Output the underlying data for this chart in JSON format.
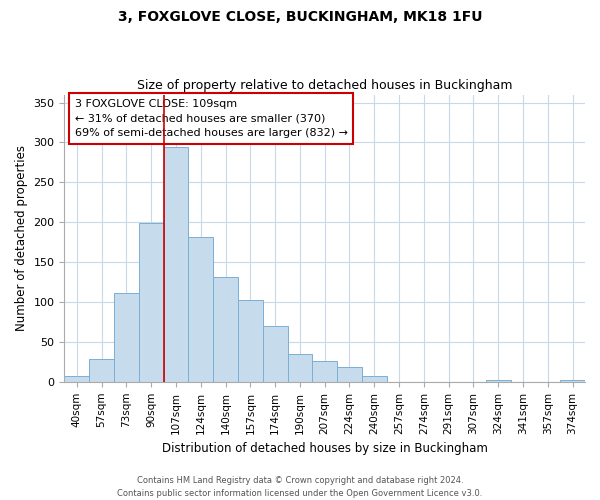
{
  "title": "3, FOXGLOVE CLOSE, BUCKINGHAM, MK18 1FU",
  "subtitle": "Size of property relative to detached houses in Buckingham",
  "xlabel": "Distribution of detached houses by size in Buckingham",
  "ylabel": "Number of detached properties",
  "footnote1": "Contains HM Land Registry data © Crown copyright and database right 2024.",
  "footnote2": "Contains public sector information licensed under the Open Government Licence v3.0.",
  "bin_labels": [
    "40sqm",
    "57sqm",
    "73sqm",
    "90sqm",
    "107sqm",
    "124sqm",
    "140sqm",
    "157sqm",
    "174sqm",
    "190sqm",
    "207sqm",
    "224sqm",
    "240sqm",
    "257sqm",
    "274sqm",
    "291sqm",
    "307sqm",
    "324sqm",
    "341sqm",
    "357sqm",
    "374sqm"
  ],
  "bar_heights": [
    7,
    29,
    111,
    199,
    294,
    181,
    131,
    103,
    70,
    35,
    26,
    19,
    7,
    0,
    0,
    0,
    0,
    2,
    0,
    0,
    2
  ],
  "bar_color": "#c6dcec",
  "bar_edge_color": "#7bafd4",
  "highlight_bar_index": 4,
  "highlight_line_color": "#cc0000",
  "annotation_text": "3 FOXGLOVE CLOSE: 109sqm\n← 31% of detached houses are smaller (370)\n69% of semi-detached houses are larger (832) →",
  "annotation_box_color": "white",
  "annotation_box_edge": "#cc0000",
  "ylim": [
    0,
    360
  ],
  "yticks": [
    0,
    50,
    100,
    150,
    200,
    250,
    300,
    350
  ],
  "background_color": "white",
  "grid_color": "#c8d8e8"
}
